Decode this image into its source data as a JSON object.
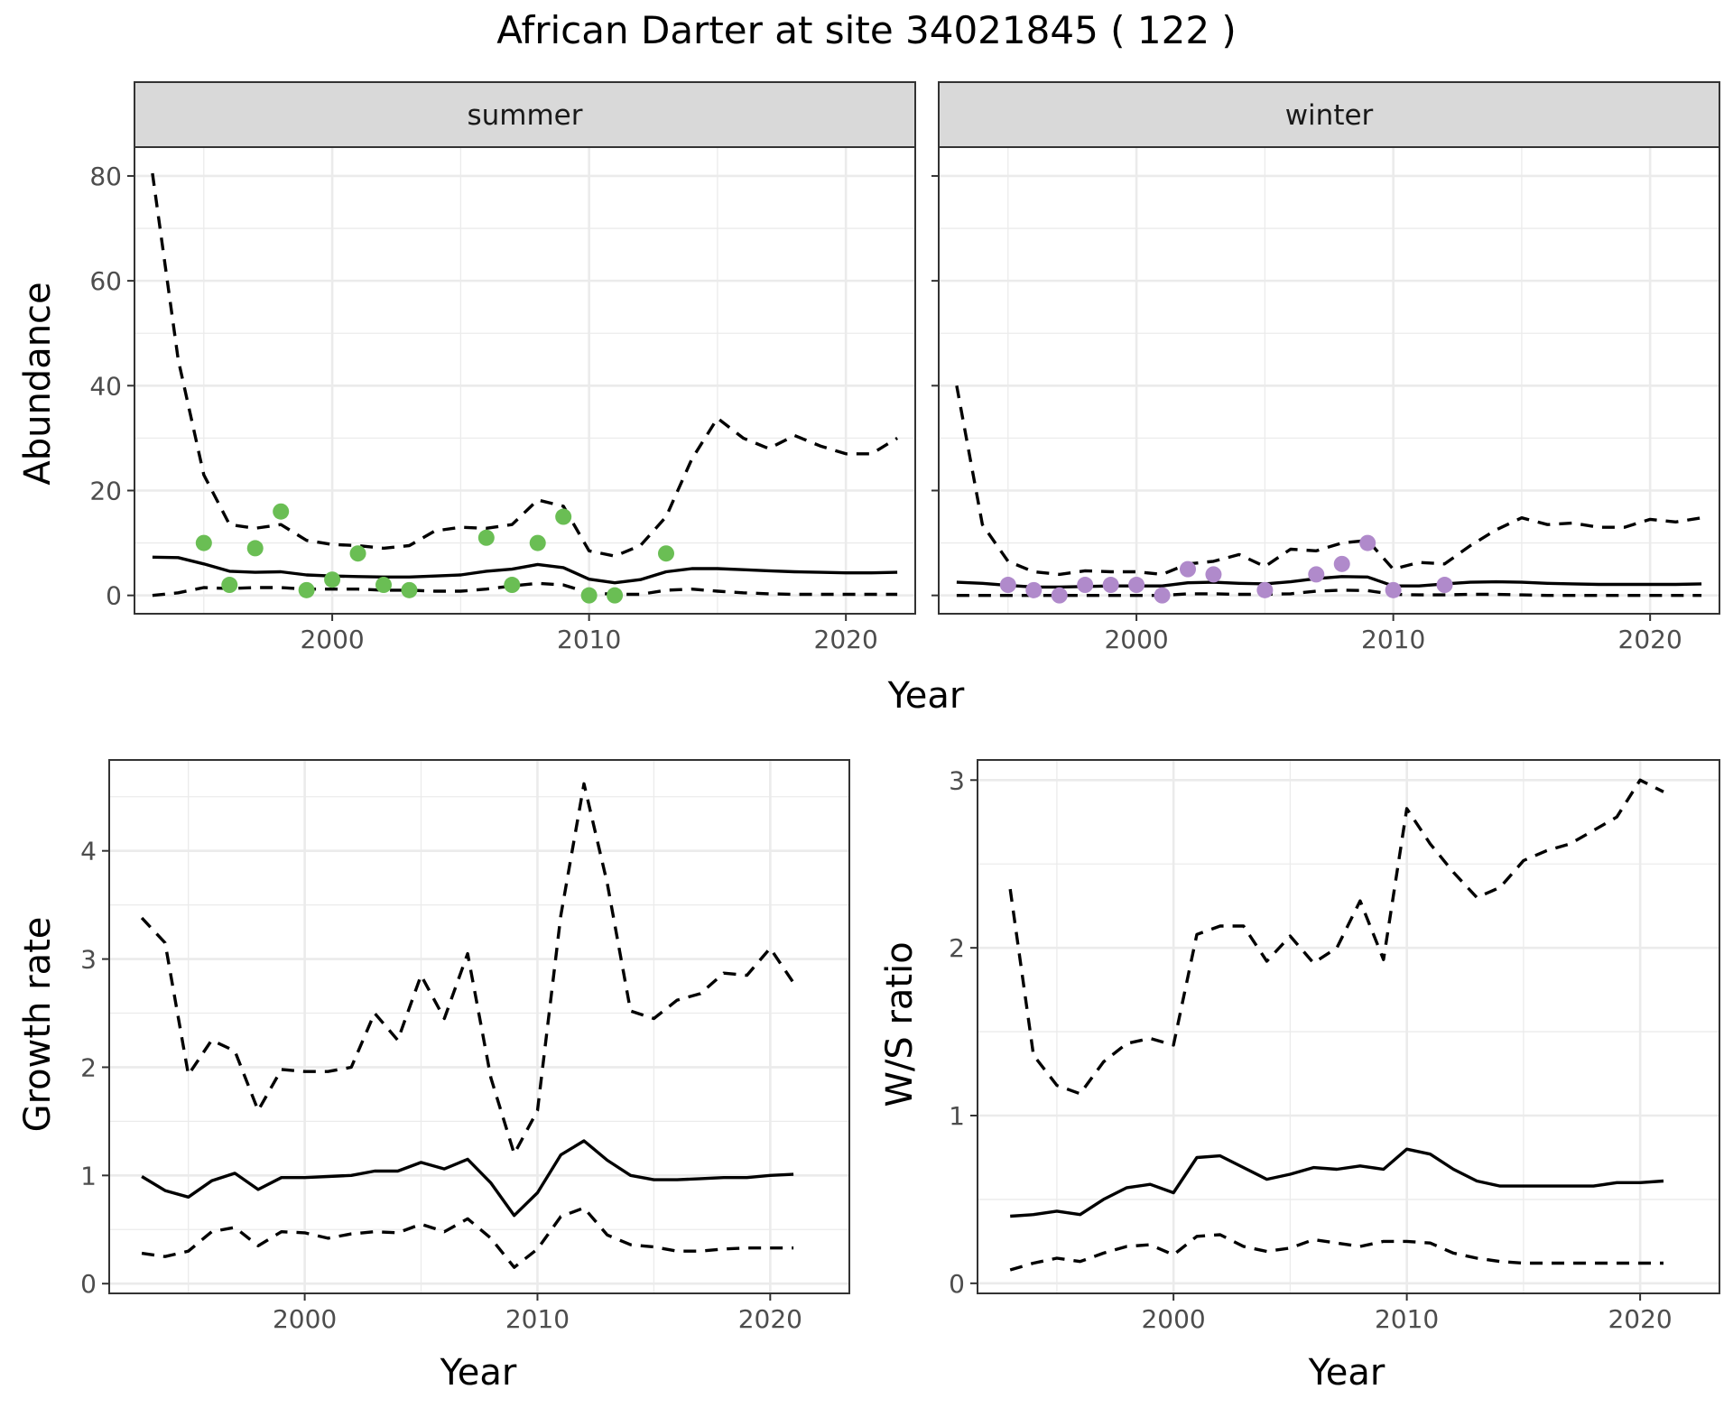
{
  "title": "African Darter at site 34021845 ( 122 )",
  "colors": {
    "summer_points": "#6ABE54",
    "winter_points": "#B08ACB"
  },
  "chart_data": [
    {
      "id": "abundance",
      "type": "line",
      "facets": [
        "summer",
        "winter"
      ],
      "xlabel": "Year",
      "ylabel": "Abundance",
      "xlim": [
        1992.3,
        2022.7
      ],
      "ylim": [
        -3.5,
        85.5
      ],
      "xticks": [
        2000,
        2010,
        2020
      ],
      "yticks": [
        0,
        20,
        40,
        60,
        80
      ],
      "panels": [
        {
          "facet": "summer",
          "x": [
            1993,
            1994,
            1995,
            1996,
            1997,
            1998,
            1999,
            2000,
            2001,
            2002,
            2003,
            2004,
            2005,
            2006,
            2007,
            2008,
            2009,
            2010,
            2011,
            2012,
            2013,
            2014,
            2015,
            2016,
            2017,
            2018,
            2019,
            2020,
            2021,
            2022
          ],
          "fit": [
            7.3,
            7.2,
            6.0,
            4.6,
            4.4,
            4.5,
            3.9,
            3.7,
            3.6,
            3.5,
            3.5,
            3.7,
            3.9,
            4.6,
            5.0,
            5.9,
            5.3,
            3.1,
            2.4,
            3.0,
            4.5,
            5.1,
            5.1,
            4.9,
            4.7,
            4.5,
            4.4,
            4.3,
            4.3,
            4.4
          ],
          "lower": [
            0.0,
            0.5,
            1.5,
            1.3,
            1.5,
            1.5,
            1.2,
            1.2,
            1.2,
            1.0,
            1.0,
            0.8,
            0.8,
            1.2,
            1.8,
            2.3,
            2.0,
            0.5,
            0.2,
            0.2,
            1.0,
            1.2,
            0.8,
            0.5,
            0.3,
            0.2,
            0.2,
            0.2,
            0.2,
            0.2
          ],
          "upper": [
            80.5,
            45.0,
            23.0,
            13.5,
            12.8,
            13.5,
            10.5,
            9.7,
            9.5,
            9.0,
            9.5,
            12.3,
            13.0,
            12.8,
            13.5,
            18.2,
            17.0,
            8.5,
            7.5,
            9.5,
            15.0,
            26.0,
            33.8,
            30.0,
            28.0,
            30.5,
            28.5,
            27.0,
            27.0,
            30.0
          ],
          "obs_x": [
            1995,
            1996,
            1997,
            1998,
            1999,
            2000,
            2001,
            2002,
            2003,
            2006,
            2007,
            2008,
            2009,
            2010,
            2011,
            2013
          ],
          "obs_y": [
            10,
            2,
            9,
            16,
            1,
            3,
            8,
            2,
            1,
            11,
            2,
            10,
            15,
            0,
            0,
            8
          ]
        },
        {
          "facet": "winter",
          "x": [
            1993,
            1994,
            1995,
            1996,
            1997,
            1998,
            1999,
            2000,
            2001,
            2002,
            2003,
            2004,
            2005,
            2006,
            2007,
            2008,
            2009,
            2010,
            2011,
            2012,
            2013,
            2014,
            2015,
            2016,
            2017,
            2018,
            2019,
            2020,
            2021,
            2022
          ],
          "fit": [
            2.5,
            2.3,
            1.9,
            1.6,
            1.6,
            1.7,
            1.8,
            1.8,
            1.8,
            2.4,
            2.5,
            2.3,
            2.2,
            2.6,
            3.2,
            3.6,
            3.5,
            1.8,
            1.8,
            2.2,
            2.5,
            2.6,
            2.5,
            2.3,
            2.2,
            2.1,
            2.1,
            2.1,
            2.1,
            2.2
          ],
          "lower": [
            0.0,
            0.0,
            0.0,
            0.0,
            0.0,
            0.0,
            0.0,
            0.0,
            0.0,
            0.3,
            0.3,
            0.2,
            0.2,
            0.3,
            0.8,
            1.0,
            0.9,
            0.2,
            0.1,
            0.1,
            0.2,
            0.2,
            0.1,
            0.0,
            0.0,
            0.0,
            0.0,
            0.0,
            0.0,
            0.0
          ],
          "upper": [
            40.0,
            13.5,
            6.5,
            4.5,
            4.0,
            4.7,
            4.5,
            4.5,
            4.0,
            6.0,
            6.5,
            7.8,
            5.5,
            8.8,
            8.5,
            10.0,
            10.5,
            5.0,
            6.3,
            6.0,
            9.5,
            12.5,
            14.8,
            13.5,
            13.8,
            13.0,
            13.0,
            14.5,
            14.0,
            14.8
          ],
          "obs_x": [
            1995,
            1996,
            1997,
            1998,
            1999,
            2000,
            2001,
            2002,
            2003,
            2005,
            2007,
            2008,
            2009,
            2010,
            2012
          ],
          "obs_y": [
            2,
            1,
            0,
            2,
            2,
            2,
            0,
            5,
            4,
            1,
            4,
            6,
            10,
            1,
            2
          ]
        }
      ]
    },
    {
      "id": "growth",
      "type": "line",
      "xlabel": "Year",
      "ylabel": "Growth rate",
      "xlim": [
        1991.6,
        2023.4
      ],
      "ylim": [
        -0.09,
        4.84
      ],
      "xticks": [
        2000,
        2010,
        2020
      ],
      "yticks": [
        0,
        1,
        2,
        3,
        4
      ],
      "x": [
        1993,
        1994,
        1995,
        1996,
        1997,
        1998,
        1999,
        2000,
        2001,
        2002,
        2003,
        2004,
        2005,
        2006,
        2007,
        2008,
        2009,
        2010,
        2011,
        2012,
        2013,
        2014,
        2015,
        2016,
        2017,
        2018,
        2019,
        2020,
        2021
      ],
      "fit": [
        0.99,
        0.86,
        0.8,
        0.95,
        1.02,
        0.87,
        0.98,
        0.98,
        0.99,
        1.0,
        1.04,
        1.04,
        1.12,
        1.06,
        1.15,
        0.93,
        0.63,
        0.84,
        1.19,
        1.32,
        1.14,
        1.0,
        0.96,
        0.96,
        0.97,
        0.98,
        0.98,
        1.0,
        1.01
      ],
      "lower": [
        0.28,
        0.25,
        0.3,
        0.48,
        0.52,
        0.35,
        0.48,
        0.47,
        0.42,
        0.46,
        0.48,
        0.47,
        0.55,
        0.48,
        0.6,
        0.42,
        0.15,
        0.32,
        0.62,
        0.7,
        0.45,
        0.36,
        0.34,
        0.3,
        0.3,
        0.32,
        0.33,
        0.33,
        0.33
      ],
      "upper": [
        3.38,
        3.15,
        1.93,
        2.25,
        2.15,
        1.6,
        1.98,
        1.96,
        1.96,
        2.0,
        2.5,
        2.25,
        2.85,
        2.45,
        3.05,
        1.9,
        1.2,
        1.6,
        3.4,
        4.62,
        3.7,
        2.52,
        2.45,
        2.62,
        2.68,
        2.87,
        2.85,
        3.1,
        2.78
      ]
    },
    {
      "id": "ws_ratio",
      "type": "line",
      "xlabel": "Year",
      "ylabel": "W/S ratio",
      "xlim": [
        1991.6,
        2023.4
      ],
      "ylim": [
        -0.06,
        3.12
      ],
      "xticks": [
        2000,
        2010,
        2020
      ],
      "yticks": [
        0,
        1,
        2,
        3
      ],
      "x": [
        1993,
        1994,
        1995,
        1996,
        1997,
        1998,
        1999,
        2000,
        2001,
        2002,
        2003,
        2004,
        2005,
        2006,
        2007,
        2008,
        2009,
        2010,
        2011,
        2012,
        2013,
        2014,
        2015,
        2016,
        2017,
        2018,
        2019,
        2020,
        2021
      ],
      "fit": [
        0.4,
        0.41,
        0.43,
        0.41,
        0.5,
        0.57,
        0.59,
        0.54,
        0.75,
        0.76,
        0.69,
        0.62,
        0.65,
        0.69,
        0.68,
        0.7,
        0.68,
        0.8,
        0.77,
        0.68,
        0.61,
        0.58,
        0.58,
        0.58,
        0.58,
        0.58,
        0.6,
        0.6,
        0.61
      ],
      "lower": [
        0.08,
        0.12,
        0.15,
        0.13,
        0.18,
        0.22,
        0.23,
        0.17,
        0.28,
        0.29,
        0.22,
        0.19,
        0.21,
        0.26,
        0.24,
        0.22,
        0.25,
        0.25,
        0.24,
        0.18,
        0.15,
        0.13,
        0.12,
        0.12,
        0.12,
        0.12,
        0.12,
        0.12,
        0.12
      ],
      "upper": [
        2.35,
        1.36,
        1.18,
        1.13,
        1.32,
        1.43,
        1.46,
        1.42,
        2.08,
        2.13,
        2.13,
        1.92,
        2.07,
        1.91,
        2.0,
        2.28,
        1.93,
        2.83,
        2.62,
        2.45,
        2.3,
        2.36,
        2.52,
        2.58,
        2.62,
        2.7,
        2.78,
        3.0,
        2.93
      ]
    }
  ]
}
